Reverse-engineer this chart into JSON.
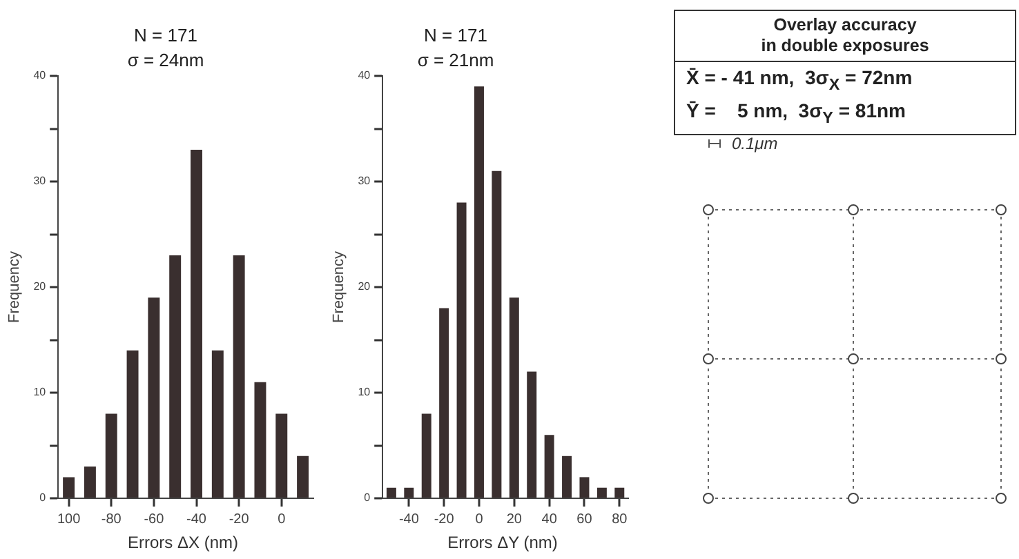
{
  "chart_data": [
    {
      "type": "histogram",
      "title": "N = 171",
      "subtitle": "σ = 24nm",
      "xlabel": "Errors ΔX (nm)",
      "ylabel": "Frequency",
      "bins": [
        -105,
        -95,
        -85,
        -75,
        -65,
        -55,
        -45,
        -35,
        -25,
        -15,
        -5,
        5,
        15
      ],
      "values": [
        2,
        3,
        8,
        14,
        19,
        23,
        33,
        14,
        23,
        11,
        8,
        4
      ],
      "color": "#3a2f2f",
      "xlim": [
        -105,
        15
      ],
      "xticks": [
        {
          "value": -100,
          "label": "100"
        },
        -80,
        -60,
        -40,
        -20,
        0
      ],
      "ylim": [
        0,
        40
      ],
      "yticks": [
        0,
        {
          "value": 5,
          "label": null
        },
        10,
        {
          "value": 15,
          "label": null
        },
        20,
        {
          "value": 25,
          "label": null
        },
        30,
        {
          "value": 35,
          "label": null
        },
        40
      ],
      "grid": false,
      "legend": false
    },
    {
      "type": "histogram",
      "title": "N = 171",
      "subtitle": "σ = 21nm",
      "xlabel": "Errors ΔY (nm)",
      "ylabel": "Frequency",
      "bins": [
        -55,
        -45,
        -35,
        -25,
        -15,
        -5,
        5,
        15,
        25,
        35,
        45,
        55,
        65,
        75,
        85
      ],
      "values": [
        1,
        1,
        8,
        18,
        28,
        39,
        31,
        19,
        12,
        6,
        4,
        2,
        1,
        1
      ],
      "color": "#3a2f2f",
      "xlim": [
        -55,
        85
      ],
      "xticks": [
        -40,
        -20,
        0,
        20,
        40,
        60,
        80
      ],
      "ylim": [
        0,
        40
      ],
      "yticks": [
        0,
        {
          "value": 5,
          "label": null
        },
        10,
        {
          "value": 15,
          "label": null
        },
        20,
        {
          "value": 25,
          "label": null
        },
        30,
        {
          "value": 35,
          "label": null
        },
        40
      ],
      "grid": false,
      "legend": false
    },
    {
      "type": "other",
      "title": "Overlay accuracy\nin double exposures",
      "annotations": [
        "X̄ = - 41 nm,  3σ$_{X}$ = 72nm",
        "Ȳ =    5 nm,  3σ$_{Y}$ = 81nm",
        "0.1μm"
      ]
    }
  ]
}
